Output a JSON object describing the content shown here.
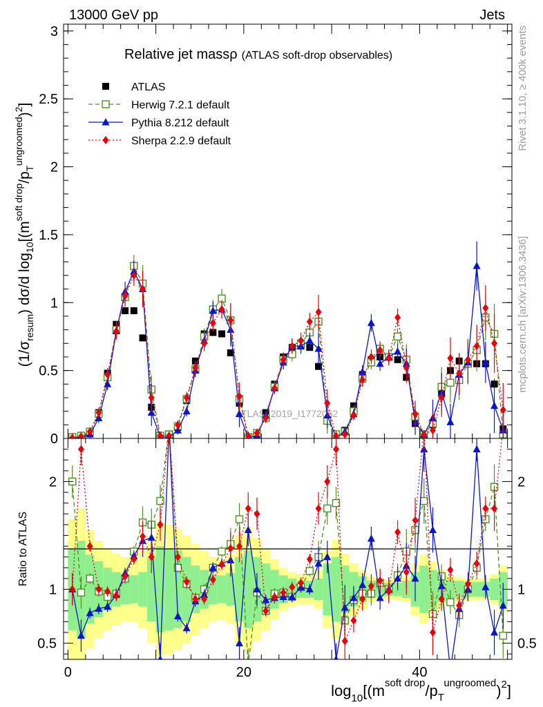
{
  "header": {
    "energy_label": "13000 GeV pp",
    "process_label": "Jets",
    "title_main": "Relative jet massρ",
    "title_sub": "(ATLAS soft-drop observables)"
  },
  "side_labels": {
    "rivet": "Rivet 3.1.10, ≥ 400k events",
    "mcplots": "mcplots.cern.ch [arXiv:1306.3436]"
  },
  "watermark": "ATLAS_2019_I1772062",
  "legend": [
    {
      "name": "ATLAS",
      "marker": "square-filled",
      "color": "#000000",
      "line": "none"
    },
    {
      "name": "Herwig 7.2.1 default",
      "marker": "square-open",
      "color": "#4d8f1c",
      "line": "dashed"
    },
    {
      "name": "Pythia 8.212 default",
      "marker": "triangle",
      "color": "#0a14c8",
      "line": "solid"
    },
    {
      "name": "Sherpa 2.2.9 default",
      "marker": "diamond",
      "color": "#e8000b",
      "line": "dotted"
    }
  ],
  "colors": {
    "band_inner": "#8fef8f",
    "band_outer": "#ffff8a"
  },
  "chart_data": [
    {
      "type": "line",
      "panel": "main",
      "title": "Relative jet massρ (ATLAS soft-drop observables)",
      "ylabel": "(1/σresum) dσ/d log10[(m^soft drop/pT^ungroomed)^2]",
      "xlim": [
        -0.5,
        50.5
      ],
      "ylim": [
        0,
        3.05
      ],
      "yticks": [
        "0",
        "0.5",
        "1",
        "1.5",
        "2",
        "2.5",
        "3"
      ],
      "x": [
        0.5,
        1.5,
        2.5,
        3.5,
        4.5,
        5.5,
        6.5,
        7.5,
        8.5,
        9.5,
        10.5,
        11.5,
        12.5,
        13.5,
        14.5,
        15.5,
        16.5,
        17.5,
        18.5,
        19.5,
        20.5,
        21.5,
        22.5,
        23.5,
        24.5,
        25.5,
        26.5,
        27.5,
        28.5,
        29.5,
        30.5,
        31.5,
        32.5,
        33.5,
        34.5,
        35.5,
        36.5,
        37.5,
        38.5,
        39.5,
        40.5,
        41.5,
        42.5,
        43.5,
        44.5,
        45.5,
        46.5,
        47.5,
        48.5,
        49.5
      ],
      "series": [
        {
          "name": "ATLAS",
          "values": [
            0.005,
            0.01,
            0.04,
            0.19,
            0.48,
            0.84,
            0.94,
            0.94,
            0.74,
            0.23,
            0.01,
            0.01,
            0.08,
            0.28,
            0.57,
            0.77,
            0.78,
            0.77,
            0.63,
            0.26,
            0.01,
            0.02,
            0.19,
            0.4,
            0.6,
            0.67,
            0.68,
            0.67,
            0.53,
            0.13,
            0.01,
            0.06,
            0.24,
            0.47,
            0.58,
            0.6,
            0.6,
            0.58,
            0.45,
            0.11,
            0.01,
            0.1,
            0.33,
            0.5,
            0.57,
            0.55,
            0.55,
            0.55,
            0.4,
            0.07
          ]
        },
        {
          "name": "Herwig 7.2.1 default",
          "values": [
            0.01,
            0.02,
            0.05,
            0.18,
            0.45,
            0.8,
            1.04,
            1.27,
            1.14,
            0.36,
            0.02,
            0.03,
            0.09,
            0.29,
            0.51,
            0.75,
            0.95,
            1.03,
            0.87,
            0.29,
            0.01,
            0.04,
            0.15,
            0.38,
            0.58,
            0.62,
            0.7,
            0.78,
            0.86,
            0.13,
            0.03,
            0.05,
            0.2,
            0.44,
            0.56,
            0.66,
            0.6,
            0.75,
            0.58,
            0.16,
            0.03,
            0.11,
            0.38,
            0.41,
            0.43,
            0.55,
            0.65,
            0.89,
            0.77,
            0.03
          ]
        },
        {
          "name": "Pythia 8.212 default",
          "values": [
            0.005,
            0.006,
            0.03,
            0.15,
            0.4,
            0.79,
            1.08,
            1.23,
            1.1,
            0.19,
            0.01,
            0.01,
            0.06,
            0.2,
            0.5,
            0.72,
            0.94,
            0.95,
            0.8,
            0.18,
            0.005,
            0.02,
            0.17,
            0.37,
            0.56,
            0.68,
            0.68,
            0.72,
            0.66,
            0.17,
            0.008,
            0.05,
            0.18,
            0.49,
            0.85,
            0.55,
            0.6,
            0.64,
            0.55,
            0.12,
            0.03,
            0.15,
            0.34,
            0.12,
            0.47,
            0.56,
            1.27,
            0.56,
            0.24,
            0.06
          ]
        },
        {
          "name": "Sherpa 2.2.9 default",
          "values": [
            0.005,
            0.015,
            0.05,
            0.19,
            0.47,
            0.79,
            1.05,
            1.2,
            1.1,
            0.3,
            0.02,
            0.02,
            0.1,
            0.3,
            0.52,
            0.7,
            0.85,
            0.95,
            0.87,
            0.31,
            0.02,
            0.04,
            0.15,
            0.37,
            0.58,
            0.68,
            0.72,
            0.86,
            0.93,
            0.26,
            0.02,
            0.03,
            0.17,
            0.43,
            0.6,
            0.65,
            0.59,
            0.89,
            0.52,
            0.18,
            0.03,
            0.06,
            0.3,
            0.59,
            0.48,
            0.58,
            0.68,
            0.96,
            0.7,
            0.21
          ]
        }
      ],
      "annotation": "ATLAS_2019_I1772062"
    },
    {
      "type": "line",
      "panel": "ratio",
      "ylabel": "Ratio to ATLAS",
      "xlabel": "log10[(m^soft drop/pT^ungroomed)^2]",
      "xlim": [
        -0.5,
        50.5
      ],
      "ylim": [
        0.35,
        2.4
      ],
      "yticks": [
        "0.5",
        "1",
        "2"
      ],
      "xticks": [
        "0",
        "20",
        "40"
      ],
      "x": [
        0.5,
        1.5,
        2.5,
        3.5,
        4.5,
        5.5,
        6.5,
        7.5,
        8.5,
        9.5,
        10.5,
        11.5,
        12.5,
        13.5,
        14.5,
        15.5,
        16.5,
        17.5,
        18.5,
        19.5,
        20.5,
        21.5,
        22.5,
        23.5,
        24.5,
        25.5,
        26.5,
        27.5,
        28.5,
        29.5,
        30.5,
        31.5,
        32.5,
        33.5,
        34.5,
        35.5,
        36.5,
        37.5,
        38.5,
        39.5,
        40.5,
        41.5,
        42.5,
        43.5,
        44.5,
        45.5,
        46.5,
        47.5,
        48.5,
        49.5
      ],
      "band_inner_halfwidth": [
        0.38,
        0.45,
        0.32,
        0.26,
        0.2,
        0.16,
        0.14,
        0.13,
        0.16,
        0.3,
        0.4,
        0.38,
        0.36,
        0.3,
        0.22,
        0.18,
        0.14,
        0.13,
        0.15,
        0.3,
        0.36,
        0.3,
        0.24,
        0.18,
        0.13,
        0.1,
        0.08,
        0.08,
        0.1,
        0.24,
        0.3,
        0.22,
        0.16,
        0.12,
        0.08,
        0.07,
        0.06,
        0.06,
        0.08,
        0.16,
        0.22,
        0.18,
        0.12,
        0.09,
        0.08,
        0.07,
        0.07,
        0.07,
        0.1,
        0.16
      ],
      "band_outer_halfwidth": [
        0.65,
        0.75,
        0.55,
        0.45,
        0.38,
        0.33,
        0.3,
        0.3,
        0.36,
        0.5,
        0.62,
        0.6,
        0.56,
        0.5,
        0.42,
        0.36,
        0.3,
        0.28,
        0.32,
        0.5,
        0.58,
        0.48,
        0.38,
        0.28,
        0.2,
        0.16,
        0.14,
        0.14,
        0.18,
        0.36,
        0.46,
        0.33,
        0.24,
        0.18,
        0.12,
        0.1,
        0.09,
        0.1,
        0.12,
        0.24,
        0.32,
        0.26,
        0.18,
        0.13,
        0.11,
        0.1,
        0.1,
        0.1,
        0.14,
        0.22
      ],
      "series": [
        {
          "name": "Herwig 7.2.1 default",
          "values": [
            2,
            0.97,
            1.1,
            0.98,
            0.93,
            0.96,
            1.1,
            1.35,
            1.62,
            1.6,
            1.82,
            2.8,
            1.2,
            1.05,
            0.92,
            1.0,
            1.2,
            1.35,
            1.42,
            1.65,
            0.3,
            0.97,
            0.8,
            0.96,
            0.97,
            0.93,
            1.02,
            1.17,
            1.3,
            1.75,
            1.8,
            0.71,
            0.9,
            0.96,
            0.96,
            1.06,
            1.0,
            1.13,
            1.35,
            1.55,
            1.82,
            0.77,
            1.12,
            0.88,
            0.76,
            1.0,
            1.2,
            1.65,
            1.95,
            0.57
          ]
        },
        {
          "name": "Pythia 8.212 default",
          "values": [
            1.0,
            0.57,
            0.78,
            0.82,
            0.84,
            0.95,
            1.15,
            1.31,
            1.45,
            1.48,
            0.35,
            2.5,
            0.75,
            0.64,
            0.89,
            0.95,
            1.2,
            1.24,
            1.27,
            0.5,
            1.55,
            1.0,
            0.9,
            0.92,
            0.93,
            0.93,
            1.02,
            1.0,
            1.24,
            1.3,
            0.35,
            0.83,
            0.92,
            1.04,
            1.47,
            0.92,
            1.0,
            1.1,
            1.22,
            1.1,
            2.3,
            1.55,
            1.03,
            0.24,
            0.82,
            1.0,
            2.3,
            1.02,
            0.6,
            0.85
          ]
        },
        {
          "name": "Sherpa 2.2.9 default",
          "values": [
            1.0,
            2.3,
            1.4,
            1.0,
            0.98,
            0.94,
            1.12,
            1.28,
            1.49,
            1.3,
            1.6,
            2.5,
            1.3,
            1.07,
            0.91,
            0.91,
            1.09,
            1.23,
            1.38,
            1.4,
            1.75,
            1.7,
            0.8,
            0.93,
            0.97,
            1.02,
            1.06,
            1.28,
            1.75,
            2.0,
            2.3,
            0.52,
            0.71,
            0.91,
            1.03,
            1.08,
            0.98,
            1.53,
            1.16,
            1.64,
            2.5,
            0.6,
            0.91,
            1.18,
            0.85,
            1.05,
            1.24,
            1.75,
            1.75,
            3.0
          ]
        }
      ]
    }
  ]
}
